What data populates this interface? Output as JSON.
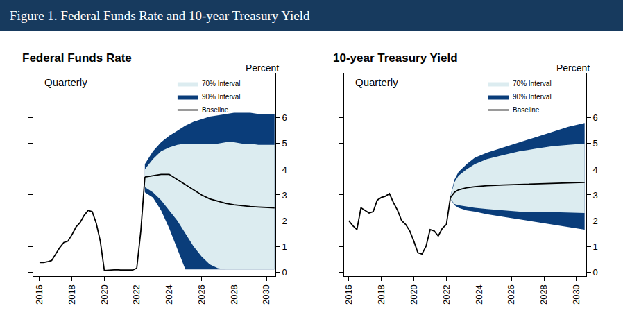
{
  "title": "Figure 1. Federal Funds Rate and 10-year Treasury Yield",
  "chart_data": [
    {
      "type": "line",
      "title": "Federal Funds Rate",
      "subtitle": "Quarterly",
      "ylabel": "Percent",
      "xlim": [
        2015.6,
        2030.55
      ],
      "xticks": [
        2016,
        2018,
        2020,
        2022,
        2024,
        2026,
        2028,
        2030
      ],
      "ylim": [
        -0.16,
        7.75
      ],
      "yticks": [
        0,
        1,
        2,
        3,
        4,
        5,
        6
      ],
      "legend": "upper right",
      "series": [
        {
          "name": "Baseline",
          "color": "#000000",
          "x": [
            2022.5,
            2023.0,
            2023.5,
            2024.0,
            2024.5,
            2025.0,
            2025.5,
            2026.0,
            2026.5,
            2027.0,
            2027.5,
            2028.0,
            2028.5,
            2029.0,
            2029.5,
            2030.0,
            2030.5
          ],
          "values": [
            3.7,
            3.75,
            3.8,
            3.8,
            3.6,
            3.4,
            3.2,
            3.0,
            2.85,
            2.75,
            2.67,
            2.62,
            2.58,
            2.55,
            2.53,
            2.52,
            2.5
          ]
        },
        {
          "name": "90% Interval",
          "type": "band",
          "color": "#0a3d7a",
          "x": [
            2022.5,
            2023.0,
            2023.5,
            2024.0,
            2024.5,
            2025.0,
            2025.5,
            2026.0,
            2026.5,
            2027.0,
            2027.5,
            2028.0,
            2028.5,
            2029.0,
            2029.5,
            2030.0,
            2030.5
          ],
          "lower": [
            3.1,
            2.9,
            2.4,
            1.7,
            0.9,
            0.1,
            0.1,
            0.1,
            0.1,
            0.1,
            0.1,
            0.1,
            0.1,
            0.1,
            0.1,
            0.1,
            0.1
          ],
          "upper": [
            4.2,
            4.7,
            5.05,
            5.3,
            5.5,
            5.7,
            5.85,
            5.95,
            6.05,
            6.1,
            6.15,
            6.2,
            6.2,
            6.2,
            6.15,
            6.15,
            6.15
          ]
        },
        {
          "name": "70% Interval",
          "type": "band",
          "color": "#dcecf0",
          "x": [
            2022.5,
            2023.0,
            2023.5,
            2024.0,
            2024.5,
            2025.0,
            2025.5,
            2026.0,
            2026.5,
            2027.0,
            2027.5,
            2028.0,
            2028.5,
            2029.0,
            2029.5,
            2030.0,
            2030.5
          ],
          "lower": [
            3.3,
            3.1,
            2.8,
            2.4,
            2.0,
            1.5,
            1.0,
            0.6,
            0.3,
            0.15,
            0.1,
            0.1,
            0.1,
            0.1,
            0.1,
            0.1,
            0.1
          ],
          "upper": [
            4.0,
            4.4,
            4.7,
            4.85,
            4.95,
            5.0,
            5.0,
            5.0,
            5.0,
            5.0,
            5.05,
            5.05,
            5.0,
            5.0,
            4.95,
            4.95,
            4.95
          ]
        },
        {
          "color": "#000000",
          "x": [
            2016.0,
            2016.25,
            2016.5,
            2016.75,
            2017.0,
            2017.25,
            2017.5,
            2017.75,
            2018.0,
            2018.25,
            2018.5,
            2018.75,
            2019.0,
            2019.25,
            2019.5,
            2019.75,
            2020.0,
            2020.25,
            2020.5,
            2020.75,
            2021.0,
            2021.25,
            2021.5,
            2021.75,
            2022.0,
            2022.25,
            2022.5
          ],
          "values": [
            0.37,
            0.37,
            0.4,
            0.45,
            0.7,
            0.95,
            1.15,
            1.2,
            1.45,
            1.75,
            1.92,
            2.2,
            2.4,
            2.35,
            1.9,
            1.2,
            0.06,
            0.07,
            0.09,
            0.09,
            0.08,
            0.07,
            0.08,
            0.08,
            0.15,
            1.6,
            3.7
          ]
        }
      ]
    },
    {
      "type": "line",
      "title": "10-year Treasury Yield",
      "subtitle": "Quarterly",
      "ylabel": "Percent",
      "xlim": [
        2015.7,
        2030.6
      ],
      "xticks": [
        2016,
        2018,
        2020,
        2022,
        2024,
        2026,
        2028,
        2030
      ],
      "ylim": [
        -0.16,
        7.75
      ],
      "yticks": [
        0,
        1,
        2,
        3,
        4,
        5,
        6
      ],
      "legend": "upper right",
      "series": [
        {
          "name": "Baseline",
          "color": "#000000",
          "x": [
            2022.25,
            2022.5,
            2022.75,
            2023.25,
            2023.75,
            2024.5,
            2025.5,
            2026.5,
            2027.5,
            2028.5,
            2029.5,
            2030.5
          ],
          "values": [
            2.9,
            3.1,
            3.2,
            3.28,
            3.32,
            3.36,
            3.39,
            3.41,
            3.43,
            3.45,
            3.47,
            3.49
          ]
        },
        {
          "name": "90% Interval",
          "type": "band",
          "color": "#0a3d7a",
          "x": [
            2022.25,
            2022.5,
            2022.75,
            2023.25,
            2023.75,
            2024.5,
            2025.5,
            2026.5,
            2027.5,
            2028.5,
            2029.5,
            2030.5
          ],
          "lower": [
            2.85,
            2.6,
            2.5,
            2.4,
            2.35,
            2.25,
            2.15,
            2.05,
            1.95,
            1.85,
            1.75,
            1.65
          ],
          "upper": [
            2.95,
            3.6,
            3.9,
            4.2,
            4.45,
            4.65,
            4.85,
            5.05,
            5.25,
            5.45,
            5.65,
            5.8
          ]
        },
        {
          "name": "70% Interval",
          "type": "band",
          "color": "#dcecf0",
          "x": [
            2022.25,
            2022.5,
            2022.75,
            2023.25,
            2023.75,
            2024.5,
            2025.5,
            2026.5,
            2027.5,
            2028.5,
            2029.5,
            2030.5
          ],
          "lower": [
            2.85,
            2.65,
            2.6,
            2.55,
            2.5,
            2.45,
            2.4,
            2.35,
            2.35,
            2.33,
            2.3,
            2.3
          ],
          "upper": [
            2.95,
            3.5,
            3.75,
            4.0,
            4.2,
            4.4,
            4.55,
            4.7,
            4.8,
            4.9,
            4.95,
            5.0
          ]
        },
        {
          "color": "#000000",
          "x": [
            2016.0,
            2016.25,
            2016.5,
            2016.75,
            2017.0,
            2017.25,
            2017.5,
            2017.75,
            2018.0,
            2018.25,
            2018.5,
            2018.75,
            2019.0,
            2019.25,
            2019.5,
            2019.75,
            2020.0,
            2020.25,
            2020.5,
            2020.75,
            2021.0,
            2021.25,
            2021.5,
            2021.75,
            2022.0,
            2022.25
          ],
          "values": [
            2.0,
            1.8,
            1.65,
            2.5,
            2.4,
            2.3,
            2.35,
            2.8,
            2.9,
            2.95,
            3.05,
            2.7,
            2.4,
            2.0,
            1.85,
            1.6,
            1.2,
            0.75,
            0.7,
            1.0,
            1.65,
            1.6,
            1.4,
            1.7,
            1.85,
            2.9
          ]
        }
      ]
    }
  ]
}
